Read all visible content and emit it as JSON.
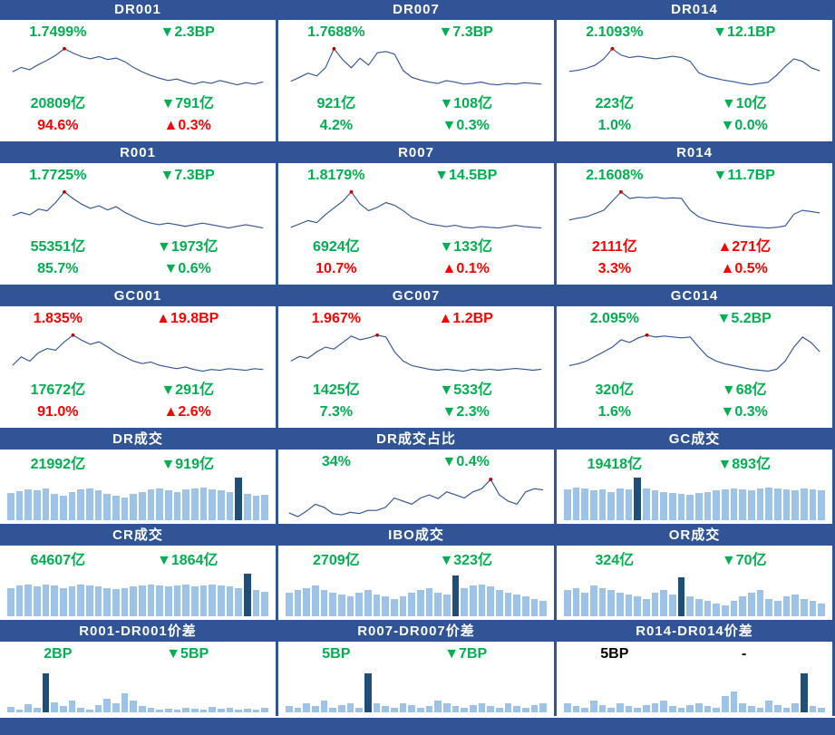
{
  "colors": {
    "header_bg": "#305496",
    "header_text": "#FFFFFF",
    "green": "#00B050",
    "red": "#FF0000",
    "black": "#000000",
    "line": "#305496",
    "dot": "#C00000",
    "bar_light": "#9DC3E6",
    "bar_dark": "#1F4E79"
  },
  "footer": {
    "text": ""
  },
  "chart_data": {
    "rate_panels": [
      {
        "type": "line",
        "title": "DR001",
        "rate": {
          "text": "1.7499%",
          "color": "green"
        },
        "rate_change": {
          "text": "▼2.3BP",
          "color": "green"
        },
        "volume": {
          "text": "20809亿",
          "color": "green"
        },
        "volume_change": {
          "text": "▼791亿",
          "color": "green"
        },
        "share": {
          "text": "94.6%",
          "color": "red"
        },
        "share_change": {
          "text": "▲0.3%",
          "color": "red"
        },
        "series": [
          52,
          58,
          55,
          62,
          68,
          75,
          84,
          78,
          73,
          70,
          73,
          69,
          71,
          66,
          58,
          52,
          47,
          43,
          40,
          42,
          38,
          35,
          38,
          36,
          40,
          37,
          34,
          37,
          35,
          38
        ]
      },
      {
        "type": "line",
        "title": "DR007",
        "rate": {
          "text": "1.7688%",
          "color": "green"
        },
        "rate_change": {
          "text": "▼7.3BP",
          "color": "green"
        },
        "volume": {
          "text": "921亿",
          "color": "green"
        },
        "volume_change": {
          "text": "▼108亿",
          "color": "green"
        },
        "share": {
          "text": "4.2%",
          "color": "green"
        },
        "share_change": {
          "text": "▼0.3%",
          "color": "green"
        },
        "series": [
          38,
          44,
          50,
          46,
          58,
          86,
          70,
          58,
          72,
          62,
          80,
          82,
          78,
          54,
          44,
          40,
          37,
          35,
          39,
          37,
          34,
          35,
          37,
          34,
          33,
          35,
          34,
          36,
          35,
          34
        ]
      },
      {
        "type": "line",
        "title": "DR014",
        "rate": {
          "text": "2.1093%",
          "color": "green"
        },
        "rate_change": {
          "text": "▼12.1BP",
          "color": "green"
        },
        "volume": {
          "text": "223亿",
          "color": "green"
        },
        "volume_change": {
          "text": "▼10亿",
          "color": "green"
        },
        "share": {
          "text": "1.0%",
          "color": "green"
        },
        "share_change": {
          "text": "▼0.0%",
          "color": "green"
        },
        "series": [
          48,
          50,
          53,
          58,
          68,
          84,
          74,
          70,
          72,
          70,
          68,
          70,
          72,
          70,
          64,
          46,
          40,
          37,
          34,
          32,
          29,
          27,
          29,
          31,
          42,
          56,
          68,
          64,
          54,
          49
        ]
      },
      {
        "type": "line",
        "title": "R001",
        "rate": {
          "text": "1.7725%",
          "color": "green"
        },
        "rate_change": {
          "text": "▼7.3BP",
          "color": "green"
        },
        "volume": {
          "text": "55351亿",
          "color": "green"
        },
        "volume_change": {
          "text": "▼1973亿",
          "color": "green"
        },
        "share": {
          "text": "85.7%",
          "color": "green"
        },
        "share_change": {
          "text": "▼0.6%",
          "color": "green"
        },
        "series": [
          50,
          54,
          51,
          58,
          56,
          66,
          79,
          71,
          64,
          59,
          62,
          57,
          61,
          54,
          49,
          44,
          41,
          39,
          41,
          39,
          37,
          39,
          41,
          39,
          37,
          35,
          37,
          39,
          37,
          35
        ]
      },
      {
        "type": "line",
        "title": "R007",
        "rate": {
          "text": "1.8179%",
          "color": "green"
        },
        "rate_change": {
          "text": "▼14.5BP",
          "color": "green"
        },
        "volume": {
          "text": "6924亿",
          "color": "green"
        },
        "volume_change": {
          "text": "▼133亿",
          "color": "green"
        },
        "share": {
          "text": "10.7%",
          "color": "red"
        },
        "share_change": {
          "text": "▲0.1%",
          "color": "red"
        },
        "series": [
          34,
          39,
          44,
          41,
          53,
          63,
          73,
          87,
          69,
          59,
          64,
          71,
          67,
          59,
          49,
          44,
          39,
          37,
          35,
          37,
          34,
          33,
          35,
          34,
          33,
          35,
          37,
          35,
          34,
          33
        ]
      },
      {
        "type": "line",
        "title": "R014",
        "rate": {
          "text": "2.1608%",
          "color": "green"
        },
        "rate_change": {
          "text": "▼11.7BP",
          "color": "green"
        },
        "volume": {
          "text": "2111亿",
          "color": "red"
        },
        "volume_change": {
          "text": "▲271亿",
          "color": "red"
        },
        "share": {
          "text": "3.3%",
          "color": "red"
        },
        "share_change": {
          "text": "▲0.5%",
          "color": "red"
        },
        "series": [
          44,
          47,
          49,
          54,
          59,
          73,
          87,
          77,
          79,
          78,
          79,
          77,
          78,
          77,
          59,
          49,
          44,
          41,
          39,
          37,
          35,
          34,
          33,
          32,
          33,
          35,
          53,
          59,
          57,
          55
        ]
      },
      {
        "type": "line",
        "title": "GC001",
        "rate": {
          "text": "1.835%",
          "color": "red"
        },
        "rate_change": {
          "text": "▲19.8BP",
          "color": "red"
        },
        "volume": {
          "text": "17672亿",
          "color": "green"
        },
        "volume_change": {
          "text": "▼291亿",
          "color": "green"
        },
        "share": {
          "text": "91.0%",
          "color": "red"
        },
        "share_change": {
          "text": "▲2.6%",
          "color": "red"
        },
        "series": [
          38,
          48,
          43,
          53,
          58,
          56,
          66,
          74,
          68,
          63,
          66,
          60,
          53,
          48,
          43,
          40,
          42,
          38,
          36,
          34,
          36,
          33,
          31,
          33,
          32,
          34,
          33,
          32,
          34,
          33
        ]
      },
      {
        "type": "line",
        "title": "GC007",
        "rate": {
          "text": "1.967%",
          "color": "red"
        },
        "rate_change": {
          "text": "▲1.2BP",
          "color": "red"
        },
        "volume": {
          "text": "1425亿",
          "color": "green"
        },
        "volume_change": {
          "text": "▼533亿",
          "color": "green"
        },
        "share": {
          "text": "7.3%",
          "color": "green"
        },
        "share_change": {
          "text": "▼2.3%",
          "color": "green"
        },
        "series": [
          43,
          48,
          46,
          53,
          58,
          56,
          63,
          70,
          66,
          68,
          71,
          69,
          53,
          43,
          38,
          36,
          34,
          33,
          34,
          33,
          32,
          34,
          33,
          34,
          33,
          34,
          35,
          34,
          33,
          34
        ]
      },
      {
        "type": "line",
        "title": "GC014",
        "rate": {
          "text": "2.095%",
          "color": "green"
        },
        "rate_change": {
          "text": "▼5.2BP",
          "color": "green"
        },
        "volume": {
          "text": "320亿",
          "color": "green"
        },
        "volume_change": {
          "text": "▼68亿",
          "color": "green"
        },
        "share": {
          "text": "1.6%",
          "color": "green"
        },
        "share_change": {
          "text": "▼0.3%",
          "color": "green"
        },
        "series": [
          38,
          40,
          43,
          48,
          53,
          58,
          66,
          63,
          68,
          71,
          69,
          70,
          69,
          68,
          69,
          58,
          48,
          43,
          40,
          38,
          36,
          34,
          33,
          32,
          34,
          43,
          58,
          69,
          63,
          53
        ]
      }
    ],
    "flow_panels": [
      {
        "type": "bar",
        "title": "DR成交",
        "value": {
          "text": "21992亿",
          "color": "green"
        },
        "change": {
          "text": "▼919亿",
          "color": "green"
        },
        "values": [
          62,
          66,
          70,
          67,
          72,
          60,
          56,
          64,
          70,
          72,
          67,
          60,
          55,
          52,
          60,
          64,
          70,
          72,
          67,
          64,
          70,
          72,
          74,
          70,
          67,
          64,
          96,
          60,
          56,
          58
        ],
        "highlight_index": 26
      },
      {
        "type": "line",
        "title": "DR成交占比",
        "value": {
          "text": "34%",
          "color": "green"
        },
        "change": {
          "text": "▼0.4%",
          "color": "green"
        },
        "series": [
          30,
          24,
          33,
          44,
          39,
          29,
          27,
          31,
          29,
          34,
          34,
          39,
          54,
          49,
          44,
          54,
          59,
          53,
          64,
          59,
          54,
          64,
          69,
          84,
          59,
          49,
          44,
          64,
          69,
          67
        ]
      },
      {
        "type": "bar",
        "title": "GC成交",
        "value": {
          "text": "19418亿",
          "color": "green"
        },
        "change": {
          "text": "▼893亿",
          "color": "green"
        },
        "values": [
          70,
          74,
          72,
          67,
          70,
          64,
          72,
          70,
          96,
          72,
          67,
          64,
          61,
          59,
          57,
          61,
          64,
          67,
          70,
          72,
          70,
          67,
          72,
          74,
          72,
          70,
          67,
          72,
          70,
          67
        ],
        "highlight_index": 8
      },
      {
        "type": "bar",
        "title": "CR成交",
        "value": {
          "text": "64607亿",
          "color": "green"
        },
        "change": {
          "text": "▼1864亿",
          "color": "green"
        },
        "values": [
          64,
          70,
          72,
          67,
          72,
          70,
          64,
          67,
          72,
          70,
          67,
          64,
          61,
          64,
          67,
          70,
          72,
          70,
          67,
          70,
          72,
          67,
          70,
          72,
          70,
          67,
          64,
          96,
          59,
          55
        ],
        "highlight_index": 27
      },
      {
        "type": "bar",
        "title": "IBO成交",
        "value": {
          "text": "2709亿",
          "color": "green"
        },
        "change": {
          "text": "▼323亿",
          "color": "green"
        },
        "values": [
          54,
          60,
          64,
          70,
          60,
          54,
          49,
          44,
          54,
          60,
          49,
          44,
          39,
          44,
          54,
          60,
          64,
          54,
          49,
          92,
          64,
          70,
          72,
          67,
          59,
          54,
          49,
          44,
          39,
          34
        ],
        "highlight_index": 19
      },
      {
        "type": "bar",
        "title": "OR成交",
        "value": {
          "text": "324亿",
          "color": "green"
        },
        "change": {
          "text": "▼70亿",
          "color": "green"
        },
        "values": [
          59,
          64,
          54,
          70,
          64,
          59,
          54,
          49,
          44,
          39,
          54,
          59,
          49,
          88,
          44,
          39,
          34,
          29,
          24,
          34,
          44,
          54,
          59,
          39,
          34,
          44,
          49,
          39,
          34,
          29
        ],
        "highlight_index": 13
      }
    ],
    "spread_panels": [
      {
        "type": "bar",
        "title": "R001-DR001价差",
        "value": {
          "text": "2BP",
          "color": "green"
        },
        "change": {
          "text": "▼5BP",
          "color": "green"
        },
        "values": [
          12,
          6,
          18,
          10,
          88,
          22,
          14,
          26,
          10,
          6,
          16,
          30,
          20,
          42,
          26,
          14,
          10,
          6,
          8,
          6,
          10,
          8,
          6,
          12,
          8,
          10,
          6,
          8,
          6,
          10
        ],
        "highlight_index": 4
      },
      {
        "type": "bar",
        "title": "R007-DR007价差",
        "value": {
          "text": "5BP",
          "color": "green"
        },
        "change": {
          "text": "▼7BP",
          "color": "green"
        },
        "values": [
          14,
          10,
          20,
          14,
          26,
          10,
          16,
          20,
          10,
          88,
          20,
          14,
          10,
          20,
          16,
          10,
          14,
          26,
          20,
          14,
          10,
          16,
          20,
          14,
          10,
          20,
          14,
          10,
          16,
          20
        ],
        "highlight_index": 9
      },
      {
        "type": "bar",
        "title": "R014-DR014价差",
        "value": {
          "text": "5BP",
          "color": "black"
        },
        "change": {
          "text": "-",
          "color": "black"
        },
        "values": [
          20,
          14,
          10,
          26,
          16,
          10,
          20,
          14,
          10,
          16,
          20,
          26,
          14,
          10,
          16,
          20,
          14,
          10,
          36,
          46,
          20,
          14,
          10,
          26,
          16,
          10,
          20,
          88,
          14,
          10
        ],
        "highlight_index": 27
      }
    ]
  }
}
